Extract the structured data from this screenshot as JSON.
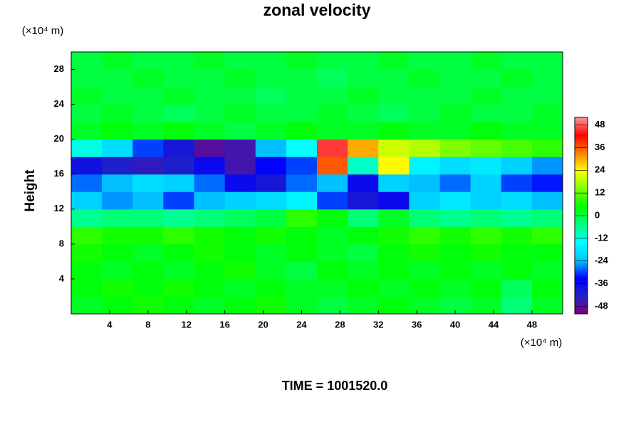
{
  "chart_data": {
    "type": "heatmap",
    "title": "zonal velocity",
    "y_label": "Height",
    "x_unit": "(×10⁴ m)",
    "y_unit": "(×10⁴ m)",
    "annotation": "TIME = 1001520.0",
    "xlim": [
      0,
      51.2
    ],
    "ylim": [
      0,
      30
    ],
    "xticks": [
      4,
      8,
      12,
      16,
      20,
      24,
      28,
      32,
      36,
      40,
      44,
      48
    ],
    "yticks": [
      4,
      8,
      12,
      16,
      20,
      24,
      28
    ],
    "x": [
      1.6,
      4.8,
      8.0,
      11.2,
      14.4,
      17.6,
      20.8,
      24.0,
      27.2,
      30.4,
      33.6,
      36.8,
      40.0,
      43.2,
      46.4,
      49.6
    ],
    "y": [
      1,
      3,
      5,
      7,
      9,
      11,
      13,
      15,
      17,
      19,
      21,
      23,
      25,
      27,
      29
    ],
    "values": [
      [
        2,
        4,
        6,
        4,
        2,
        4,
        6,
        2,
        0,
        2,
        4,
        2,
        0,
        2,
        -4,
        2
      ],
      [
        4,
        6,
        4,
        6,
        4,
        2,
        4,
        2,
        2,
        4,
        2,
        4,
        2,
        4,
        -2,
        4
      ],
      [
        4,
        2,
        4,
        2,
        4,
        6,
        2,
        0,
        4,
        2,
        4,
        2,
        4,
        2,
        4,
        2
      ],
      [
        6,
        4,
        2,
        4,
        6,
        4,
        2,
        4,
        2,
        0,
        4,
        6,
        4,
        6,
        4,
        4
      ],
      [
        8,
        6,
        6,
        8,
        6,
        4,
        6,
        4,
        2,
        4,
        6,
        8,
        6,
        8,
        6,
        8
      ],
      [
        -6,
        -4,
        -4,
        -6,
        -4,
        -2,
        0,
        8,
        4,
        -4,
        2,
        -4,
        -6,
        -4,
        -6,
        -4
      ],
      [
        -22,
        -26,
        -24,
        -30,
        -24,
        -22,
        -20,
        -16,
        -30,
        -40,
        -36,
        -22,
        -18,
        -22,
        -20,
        -24
      ],
      [
        -28,
        -24,
        -20,
        -22,
        -28,
        -36,
        -40,
        -28,
        -24,
        -36,
        -22,
        -24,
        -28,
        -22,
        -30,
        -32
      ],
      [
        -38,
        -42,
        -44,
        -42,
        -36,
        -46,
        -34,
        -30,
        36,
        -10,
        24,
        -16,
        -20,
        -18,
        -22,
        -26
      ],
      [
        -12,
        -20,
        -30,
        -40,
        -48,
        -46,
        -24,
        -14,
        46,
        30,
        20,
        18,
        14,
        12,
        10,
        8
      ],
      [
        2,
        4,
        2,
        4,
        2,
        0,
        2,
        4,
        2,
        2,
        4,
        2,
        2,
        4,
        2,
        2
      ],
      [
        0,
        2,
        0,
        -2,
        0,
        2,
        0,
        0,
        2,
        0,
        -2,
        0,
        2,
        0,
        0,
        2
      ],
      [
        2,
        0,
        0,
        2,
        0,
        0,
        -2,
        0,
        0,
        2,
        0,
        0,
        0,
        2,
        0,
        0
      ],
      [
        0,
        0,
        2,
        0,
        0,
        2,
        0,
        0,
        -2,
        0,
        0,
        2,
        0,
        0,
        2,
        0
      ],
      [
        0,
        2,
        0,
        0,
        2,
        0,
        0,
        2,
        0,
        0,
        2,
        0,
        0,
        2,
        0,
        0
      ]
    ],
    "clim": [
      -52,
      52
    ],
    "colorbar_ticks": [
      -48,
      -36,
      -24,
      -12,
      0,
      12,
      24,
      36,
      48
    ],
    "colorscale": [
      "#800080",
      "#2020c8",
      "#0000ff",
      "#00c8ff",
      "#00ffff",
      "#00ff80",
      "#00ff00",
      "#80ff00",
      "#ffff00",
      "#ff8000",
      "#ff0000",
      "#ff9898"
    ]
  }
}
